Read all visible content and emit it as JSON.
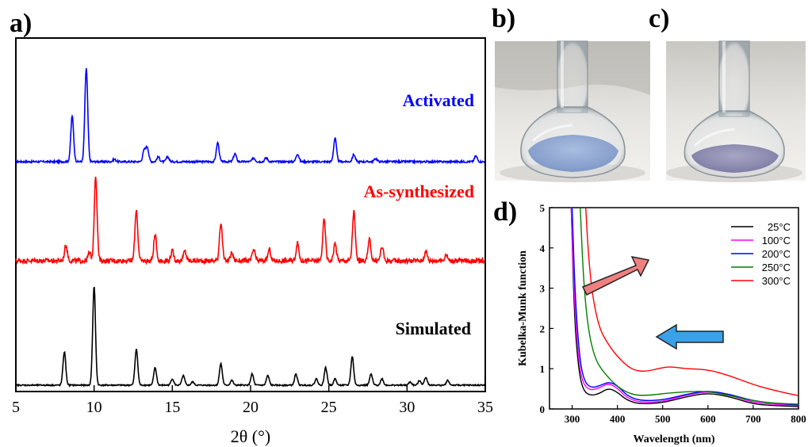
{
  "panels": {
    "a": "a)",
    "b": "b)",
    "c": "c)",
    "d": "d)"
  },
  "chart_data": [
    {
      "type": "line",
      "panel": "a",
      "xlabel": "2θ (°)",
      "xlim": [
        5,
        35
      ],
      "x_ticks": [
        "5",
        "10",
        "15",
        "20",
        "25",
        "30",
        "35"
      ],
      "ylabel": "",
      "series": [
        {
          "name": "Activated",
          "color": "#0000ff",
          "peaks_2theta": [
            8.6,
            9.5,
            11.3,
            13.2,
            13.4,
            14.1,
            14.7,
            17.9,
            19.0,
            20.2,
            21.0,
            23.0,
            25.4,
            26.6,
            28.0,
            34.4
          ],
          "peak_heights": [
            58,
            118,
            3,
            14,
            18,
            6,
            6,
            24,
            10,
            5,
            5,
            10,
            30,
            9,
            4,
            7
          ]
        },
        {
          "name": "As-synthesized",
          "color": "#ff0000",
          "peaks_2theta": [
            8.2,
            9.7,
            10.1,
            12.7,
            13.9,
            15.0,
            15.8,
            18.1,
            18.8,
            20.2,
            21.2,
            23.0,
            24.7,
            25.4,
            26.6,
            27.6,
            28.4,
            31.2,
            32.5
          ],
          "peak_heights": [
            20,
            10,
            108,
            65,
            32,
            12,
            12,
            48,
            10,
            14,
            14,
            22,
            52,
            22,
            62,
            26,
            18,
            12,
            8
          ]
        },
        {
          "name": "Simulated",
          "color": "#000000",
          "peaks_2theta": [
            8.1,
            10.0,
            12.7,
            13.9,
            15.0,
            15.7,
            16.3,
            18.1,
            18.8,
            20.1,
            21.1,
            22.9,
            24.2,
            24.8,
            25.4,
            26.5,
            27.7,
            28.4,
            30.2,
            30.8,
            31.2,
            32.6
          ],
          "peak_heights": [
            42,
            125,
            46,
            22,
            8,
            12,
            4,
            27,
            6,
            14,
            12,
            14,
            8,
            22,
            8,
            36,
            14,
            8,
            4,
            6,
            10,
            6
          ]
        }
      ]
    },
    {
      "type": "line",
      "panel": "d",
      "xlabel": "Wavelength (nm)",
      "ylabel": "Kubelka-Munk function",
      "xlim": [
        250,
        800
      ],
      "ylim": [
        0,
        5
      ],
      "x_ticks": [
        "300",
        "400",
        "500",
        "600",
        "700",
        "800"
      ],
      "y_ticks": [
        "0",
        "1",
        "2",
        "3",
        "4",
        "5"
      ],
      "legend_position": "top-right",
      "series": [
        {
          "name": "25°C",
          "color": "#000000",
          "x": [
            298,
            305,
            315,
            325,
            340,
            360,
            380,
            400,
            420,
            450,
            500,
            550,
            600,
            650,
            700,
            750,
            800
          ],
          "y": [
            5.0,
            2.2,
            0.9,
            0.45,
            0.33,
            0.38,
            0.52,
            0.42,
            0.22,
            0.12,
            0.15,
            0.3,
            0.4,
            0.3,
            0.12,
            0.08,
            0.06
          ]
        },
        {
          "name": "100°C",
          "color": "#ff00ff",
          "x": [
            298,
            305,
            315,
            325,
            340,
            360,
            380,
            400,
            420,
            450,
            500,
            550,
            600,
            650,
            700,
            750,
            800
          ],
          "y": [
            5.0,
            2.6,
            1.1,
            0.6,
            0.46,
            0.52,
            0.64,
            0.52,
            0.28,
            0.16,
            0.18,
            0.34,
            0.44,
            0.34,
            0.16,
            0.11,
            0.08
          ]
        },
        {
          "name": "200°C",
          "color": "#0000ff",
          "x": [
            300,
            307,
            317,
            327,
            342,
            362,
            382,
            402,
            422,
            452,
            500,
            550,
            600,
            650,
            700,
            750,
            800
          ],
          "y": [
            5.0,
            2.7,
            1.2,
            0.68,
            0.52,
            0.58,
            0.68,
            0.56,
            0.32,
            0.2,
            0.22,
            0.36,
            0.46,
            0.36,
            0.2,
            0.14,
            0.1
          ]
        },
        {
          "name": "250°C",
          "color": "#008000",
          "x": [
            318,
            325,
            335,
            350,
            370,
            400,
            430,
            460,
            500,
            550,
            600,
            650,
            700,
            750,
            800
          ],
          "y": [
            5.0,
            3.2,
            2.0,
            1.25,
            0.9,
            0.55,
            0.36,
            0.33,
            0.38,
            0.43,
            0.44,
            0.33,
            0.2,
            0.14,
            0.12
          ]
        },
        {
          "name": "300°C",
          "color": "#ff0000",
          "x": [
            330,
            336,
            345,
            360,
            380,
            400,
            430,
            460,
            500,
            520,
            550,
            600,
            650,
            700,
            750,
            800
          ],
          "y": [
            5.0,
            3.8,
            2.8,
            2.0,
            1.6,
            1.3,
            0.98,
            0.92,
            1.03,
            1.05,
            1.0,
            0.98,
            0.82,
            0.6,
            0.45,
            0.33
          ]
        }
      ],
      "annotations": [
        {
          "type": "arrow",
          "direction": "up-right",
          "color": "#f08080"
        },
        {
          "type": "arrow",
          "direction": "left",
          "color": "#3aa0e8"
        }
      ]
    }
  ],
  "photos": {
    "b": {
      "content": "glass round-bottom flask containing light blue crystalline powder"
    },
    "c": {
      "content": "glass round-bottom flask containing lavender-gray crystalline powder"
    }
  }
}
